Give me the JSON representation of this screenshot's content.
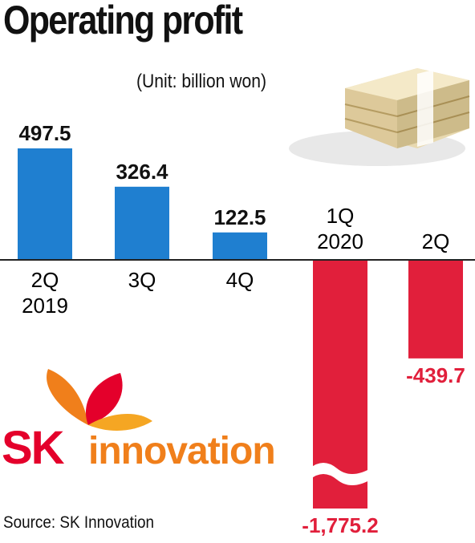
{
  "title": "Operating profit",
  "unit": "(Unit: billion won)",
  "source": "Source: SK Innovation",
  "logo": {
    "brand": "SK",
    "name": "innovation",
    "colors": {
      "red": "#e4002b",
      "orange": "#f07f1b"
    }
  },
  "colors": {
    "positive": "#1f7fd0",
    "negative": "#e11f3b"
  },
  "chart_data": {
    "type": "bar",
    "title": "Operating profit",
    "unit": "billion won",
    "categories": [
      "2Q 2019",
      "3Q",
      "4Q",
      "1Q 2020",
      "2Q"
    ],
    "category_lines": [
      [
        "2Q",
        "2019"
      ],
      [
        "3Q"
      ],
      [
        "4Q"
      ],
      [
        "1Q",
        "2020"
      ],
      [
        "2Q"
      ]
    ],
    "values": [
      497.5,
      326.4,
      122.5,
      -1775.2,
      -439.7
    ],
    "value_labels": [
      "497.5",
      "326.4",
      "122.5",
      "-1,775.2",
      "-439.7"
    ],
    "axis_break": "1Q 2020 bar truncated with break mark",
    "grid": false,
    "legend": "none"
  }
}
